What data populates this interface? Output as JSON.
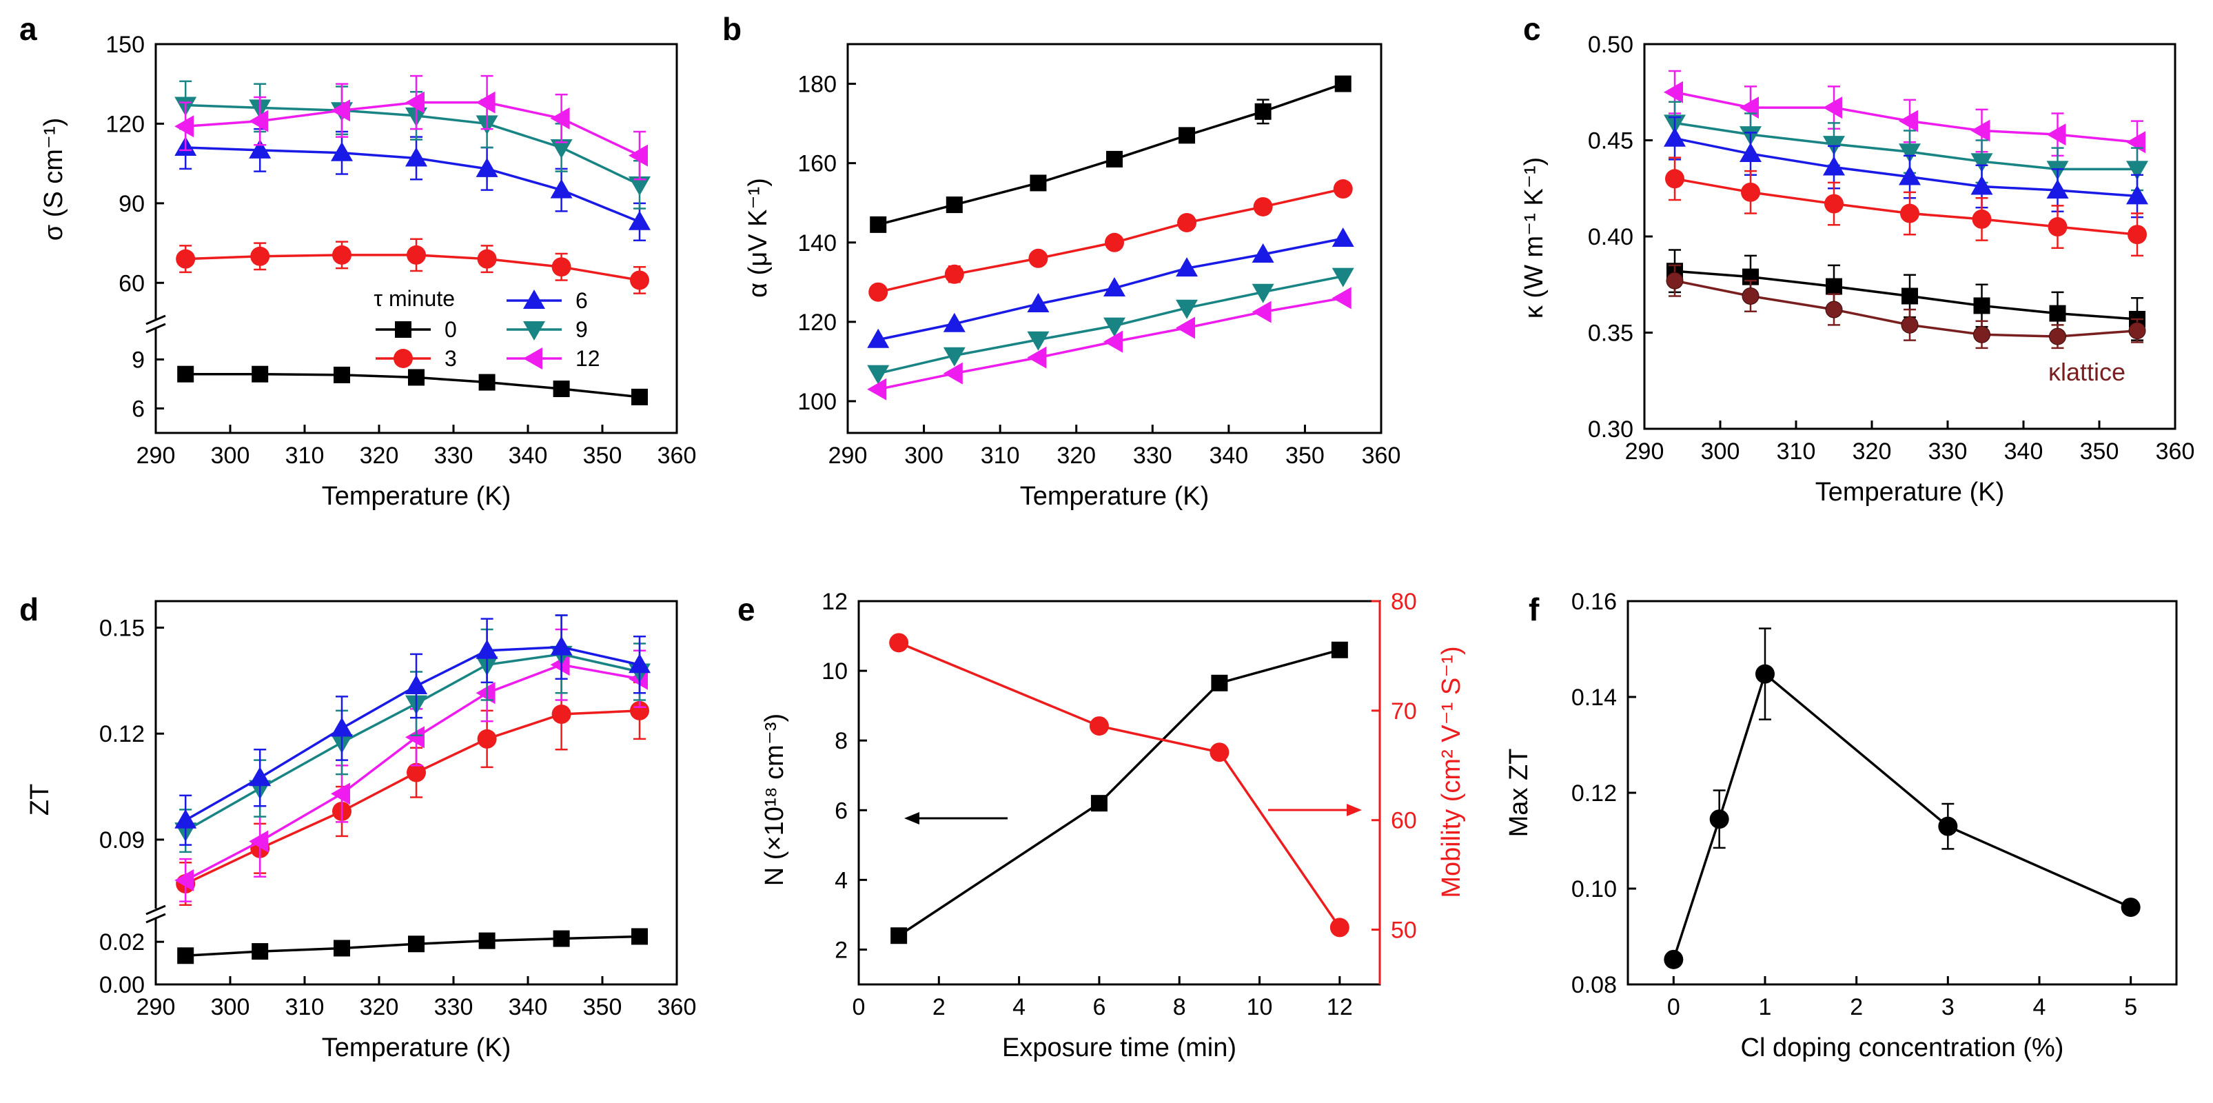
{
  "colors": {
    "black": "#000000",
    "red": "#ee1c1c",
    "blue": "#1a1ae6",
    "teal": "#188484",
    "magenta": "#ee1cee",
    "maroon": "#7a1f1f",
    "axis": "#000000"
  },
  "chart_data": [
    {
      "panel": "a",
      "type": "line",
      "xlabel": "Temperature (K)",
      "ylabel": "σ (S cm⁻¹)",
      "xlim": [
        290,
        360
      ],
      "xticks": [
        290,
        300,
        310,
        320,
        330,
        340,
        350,
        360
      ],
      "upper": {
        "ylim": [
          45,
          150
        ],
        "yticks": [
          60,
          90,
          120,
          150
        ]
      },
      "lower": {
        "ylim": [
          4.5,
          11
        ],
        "yticks": [
          6,
          9
        ]
      },
      "legend": {
        "title": "τ minute",
        "labels": [
          "0",
          "3",
          "6",
          "9",
          "12"
        ]
      },
      "x": [
        294,
        304,
        315,
        325,
        334.5,
        344.5,
        355
      ],
      "series": [
        {
          "name": "0",
          "color": "black",
          "marker": "square",
          "segment": "lower",
          "values": [
            8.1,
            8.1,
            8.05,
            7.9,
            7.6,
            7.2,
            6.7
          ],
          "err": [
            0.4,
            0.4,
            0.4,
            0.4,
            0.4,
            0.4,
            0.4
          ]
        },
        {
          "name": "3",
          "color": "red",
          "marker": "circle",
          "segment": "upper",
          "values": [
            69,
            70,
            70.5,
            70.5,
            69,
            66,
            61
          ],
          "err": [
            5,
            5,
            5,
            6,
            5,
            5,
            5
          ]
        },
        {
          "name": "6",
          "color": "blue",
          "marker": "triangle-up",
          "segment": "upper",
          "values": [
            111,
            110,
            109,
            107,
            103,
            95,
            83
          ],
          "err": [
            8,
            8,
            8,
            8,
            8,
            8,
            7
          ]
        },
        {
          "name": "9",
          "color": "teal",
          "marker": "triangle-down",
          "segment": "upper",
          "values": [
            127,
            126,
            125,
            123,
            120,
            111,
            97
          ],
          "err": [
            9,
            9,
            9,
            9,
            9,
            9,
            9
          ]
        },
        {
          "name": "12",
          "color": "magenta",
          "marker": "triangle-left",
          "segment": "upper",
          "values": [
            119,
            121,
            125,
            128,
            128,
            122,
            108
          ],
          "err": [
            9,
            9,
            10,
            10,
            10,
            9,
            9
          ]
        }
      ]
    },
    {
      "panel": "b",
      "type": "line",
      "xlabel": "Temperature (K)",
      "ylabel": "α (μV K⁻¹)",
      "xlim": [
        290,
        360
      ],
      "ylim": [
        92,
        190
      ],
      "xticks": [
        290,
        300,
        310,
        320,
        330,
        340,
        350,
        360
      ],
      "yticks": [
        100,
        120,
        140,
        160,
        180
      ],
      "x": [
        294,
        304,
        315,
        325,
        334.5,
        344.5,
        355
      ],
      "series": [
        {
          "name": "0",
          "color": "black",
          "marker": "square",
          "values": [
            144.5,
            149.5,
            155,
            161,
            167,
            173,
            180
          ],
          "err": [
            0,
            0,
            0,
            0,
            0,
            3,
            0
          ]
        },
        {
          "name": "3",
          "color": "red",
          "marker": "circle",
          "values": [
            127.5,
            132,
            136,
            140,
            145,
            149,
            153.5
          ],
          "err": [
            0,
            2,
            0,
            0,
            0,
            0,
            0
          ]
        },
        {
          "name": "6",
          "color": "blue",
          "marker": "triangle-up",
          "values": [
            115.5,
            119.5,
            124.5,
            128.5,
            133.5,
            137,
            141
          ],
          "err": [
            0,
            0,
            0,
            0,
            0,
            0,
            0
          ]
        },
        {
          "name": "9",
          "color": "teal",
          "marker": "triangle-down",
          "values": [
            107,
            111.5,
            115.5,
            119,
            123.5,
            127.5,
            131.5
          ],
          "err": [
            0,
            0,
            0,
            0,
            0,
            0,
            0
          ]
        },
        {
          "name": "12",
          "color": "magenta",
          "marker": "triangle-left",
          "values": [
            103,
            107,
            111,
            115,
            118.5,
            122.5,
            126
          ],
          "err": [
            0,
            0,
            0,
            0,
            0,
            0,
            0
          ]
        }
      ]
    },
    {
      "panel": "c",
      "type": "line",
      "xlabel": "Temperature (K)",
      "ylabel": "κ (W m⁻¹ K⁻¹)",
      "xlim": [
        290,
        360
      ],
      "ylim": [
        0.3,
        0.5
      ],
      "xticks": [
        290,
        300,
        310,
        320,
        330,
        340,
        350,
        360
      ],
      "yticks": [
        0.3,
        0.35,
        0.4,
        0.45,
        0.5
      ],
      "yticklabels": [
        "0.30",
        "0.35",
        "0.40",
        "0.45",
        "0.50"
      ],
      "annotation": "κlattice",
      "x": [
        294,
        304,
        315,
        325,
        334.5,
        344.5,
        355
      ],
      "series": [
        {
          "name": "12",
          "color": "magenta",
          "marker": "triangle-left",
          "values": [
            0.475,
            0.467,
            0.467,
            0.46,
            0.455,
            0.453,
            0.449
          ],
          "err": [
            0.011,
            0.011,
            0.011,
            0.011,
            0.011,
            0.011,
            0.011
          ]
        },
        {
          "name": "9",
          "color": "teal",
          "marker": "triangle-down",
          "values": [
            0.459,
            0.453,
            0.448,
            0.444,
            0.439,
            0.435,
            0.435
          ],
          "err": [
            0.011,
            0.011,
            0.011,
            0.011,
            0.011,
            0.011,
            0.011
          ]
        },
        {
          "name": "6",
          "color": "blue",
          "marker": "triangle-up",
          "values": [
            0.451,
            0.443,
            0.436,
            0.431,
            0.426,
            0.424,
            0.421
          ],
          "err": [
            0.011,
            0.011,
            0.011,
            0.011,
            0.011,
            0.011,
            0.011
          ]
        },
        {
          "name": "3",
          "color": "red",
          "marker": "circle",
          "values": [
            0.43,
            0.423,
            0.417,
            0.412,
            0.409,
            0.405,
            0.401
          ],
          "err": [
            0.011,
            0.011,
            0.011,
            0.011,
            0.011,
            0.011,
            0.011
          ]
        },
        {
          "name": "0",
          "color": "black",
          "marker": "square",
          "values": [
            0.382,
            0.379,
            0.374,
            0.369,
            0.364,
            0.36,
            0.357
          ],
          "err": [
            0.011,
            0.011,
            0.011,
            0.011,
            0.011,
            0.011,
            0.011
          ]
        },
        {
          "name": "κlattice",
          "color": "maroon",
          "marker": "sphere",
          "values": [
            0.377,
            0.369,
            0.362,
            0.354,
            0.349,
            0.348,
            0.351
          ],
          "err": [
            0.008,
            0.008,
            0.008,
            0.008,
            0.007,
            0.006,
            0.006
          ]
        }
      ]
    },
    {
      "panel": "d",
      "type": "line",
      "xlabel": "Temperature (K)",
      "ylabel": "ZT",
      "xlim": [
        290,
        360
      ],
      "xticks": [
        290,
        300,
        310,
        320,
        330,
        340,
        350,
        360
      ],
      "upper": {
        "ylim": [
          0.0697,
          0.1575
        ],
        "yticks": [
          0.09,
          0.12,
          0.15
        ],
        "yticklabels": [
          "0.09",
          "0.12",
          "0.15"
        ]
      },
      "lower": {
        "ylim": [
          0,
          0.033
        ],
        "yticks": [
          0,
          0.02
        ],
        "yticklabels": [
          "0.00",
          "0.02"
        ]
      },
      "x": [
        294,
        304,
        315,
        325,
        334.5,
        344.5,
        355
      ],
      "series": [
        {
          "name": "0",
          "color": "black",
          "marker": "square",
          "segment": "lower",
          "values": [
            0.0135,
            0.0155,
            0.017,
            0.019,
            0.0205,
            0.0215,
            0.0225
          ],
          "err": [
            0,
            0,
            0,
            0,
            0,
            0,
            0
          ]
        },
        {
          "name": "3",
          "color": "red",
          "marker": "circle",
          "segment": "upper",
          "values": [
            0.0775,
            0.0875,
            0.098,
            0.109,
            0.1185,
            0.1255,
            0.1265
          ],
          "err": [
            0.006,
            0.007,
            0.007,
            0.007,
            0.008,
            0.01,
            0.008
          ]
        },
        {
          "name": "12",
          "color": "magenta",
          "marker": "triangle-left",
          "segment": "upper",
          "values": [
            0.0785,
            0.0895,
            0.103,
            0.119,
            0.1315,
            0.1395,
            0.1355
          ],
          "err": [
            0.006,
            0.01,
            0.008,
            0.008,
            0.008,
            0.01,
            0.008
          ]
        },
        {
          "name": "9",
          "color": "teal",
          "marker": "triangle-down",
          "segment": "upper",
          "values": [
            0.0925,
            0.1045,
            0.1175,
            0.1285,
            0.1395,
            0.1425,
            0.1375
          ],
          "err": [
            0.006,
            0.008,
            0.009,
            0.009,
            0.01,
            0.011,
            0.008
          ]
        },
        {
          "name": "6",
          "color": "blue",
          "marker": "triangle-up",
          "segment": "upper",
          "values": [
            0.0955,
            0.1075,
            0.1215,
            0.1335,
            0.1435,
            0.1445,
            0.1395
          ],
          "err": [
            0.007,
            0.008,
            0.009,
            0.009,
            0.009,
            0.009,
            0.008
          ]
        }
      ]
    },
    {
      "panel": "e",
      "type": "line",
      "xlabel": "Exposure time (min)",
      "ylabel_left": "N (×10¹⁸ cm⁻³)",
      "ylabel_right": "Mobility (cm² V⁻¹ S⁻¹)",
      "xlim": [
        0,
        13
      ],
      "xticks": [
        0,
        2,
        4,
        6,
        8,
        10,
        12
      ],
      "ylim_left": [
        1,
        12
      ],
      "yticks_left": [
        2,
        4,
        6,
        8,
        10,
        12
      ],
      "ylim_right": [
        45,
        80
      ],
      "yticks_right": [
        50,
        60,
        70,
        80
      ],
      "series": [
        {
          "name": "N",
          "axis": "left",
          "color": "black",
          "marker": "square",
          "x": [
            1,
            6,
            9,
            12
          ],
          "values": [
            2.4,
            6.2,
            9.65,
            10.6
          ]
        },
        {
          "name": "Mobility",
          "axis": "right",
          "color": "red",
          "marker": "circle",
          "x": [
            1,
            6,
            9,
            12
          ],
          "values": [
            76.2,
            68.6,
            66.2,
            50.2
          ]
        }
      ]
    },
    {
      "panel": "f",
      "type": "line",
      "xlabel": "Cl doping concentration (%)",
      "ylabel": "Max ZT",
      "xlim": [
        -0.5,
        5.5
      ],
      "ylim": [
        0.08,
        0.16
      ],
      "xticks": [
        0,
        1,
        2,
        3,
        4,
        5
      ],
      "yticks": [
        0.08,
        0.1,
        0.12,
        0.14,
        0.16
      ],
      "yticklabels": [
        "0.08",
        "0.10",
        "0.12",
        "0.14",
        "0.16"
      ],
      "series": [
        {
          "name": "Max ZT",
          "color": "black",
          "marker": "circle",
          "x": [
            0,
            0.5,
            1,
            3,
            5
          ],
          "values": [
            0.0852,
            0.1145,
            0.1448,
            0.113,
            0.0961
          ],
          "err": [
            0,
            0.006,
            0.0095,
            0.0047,
            0
          ]
        }
      ]
    }
  ]
}
